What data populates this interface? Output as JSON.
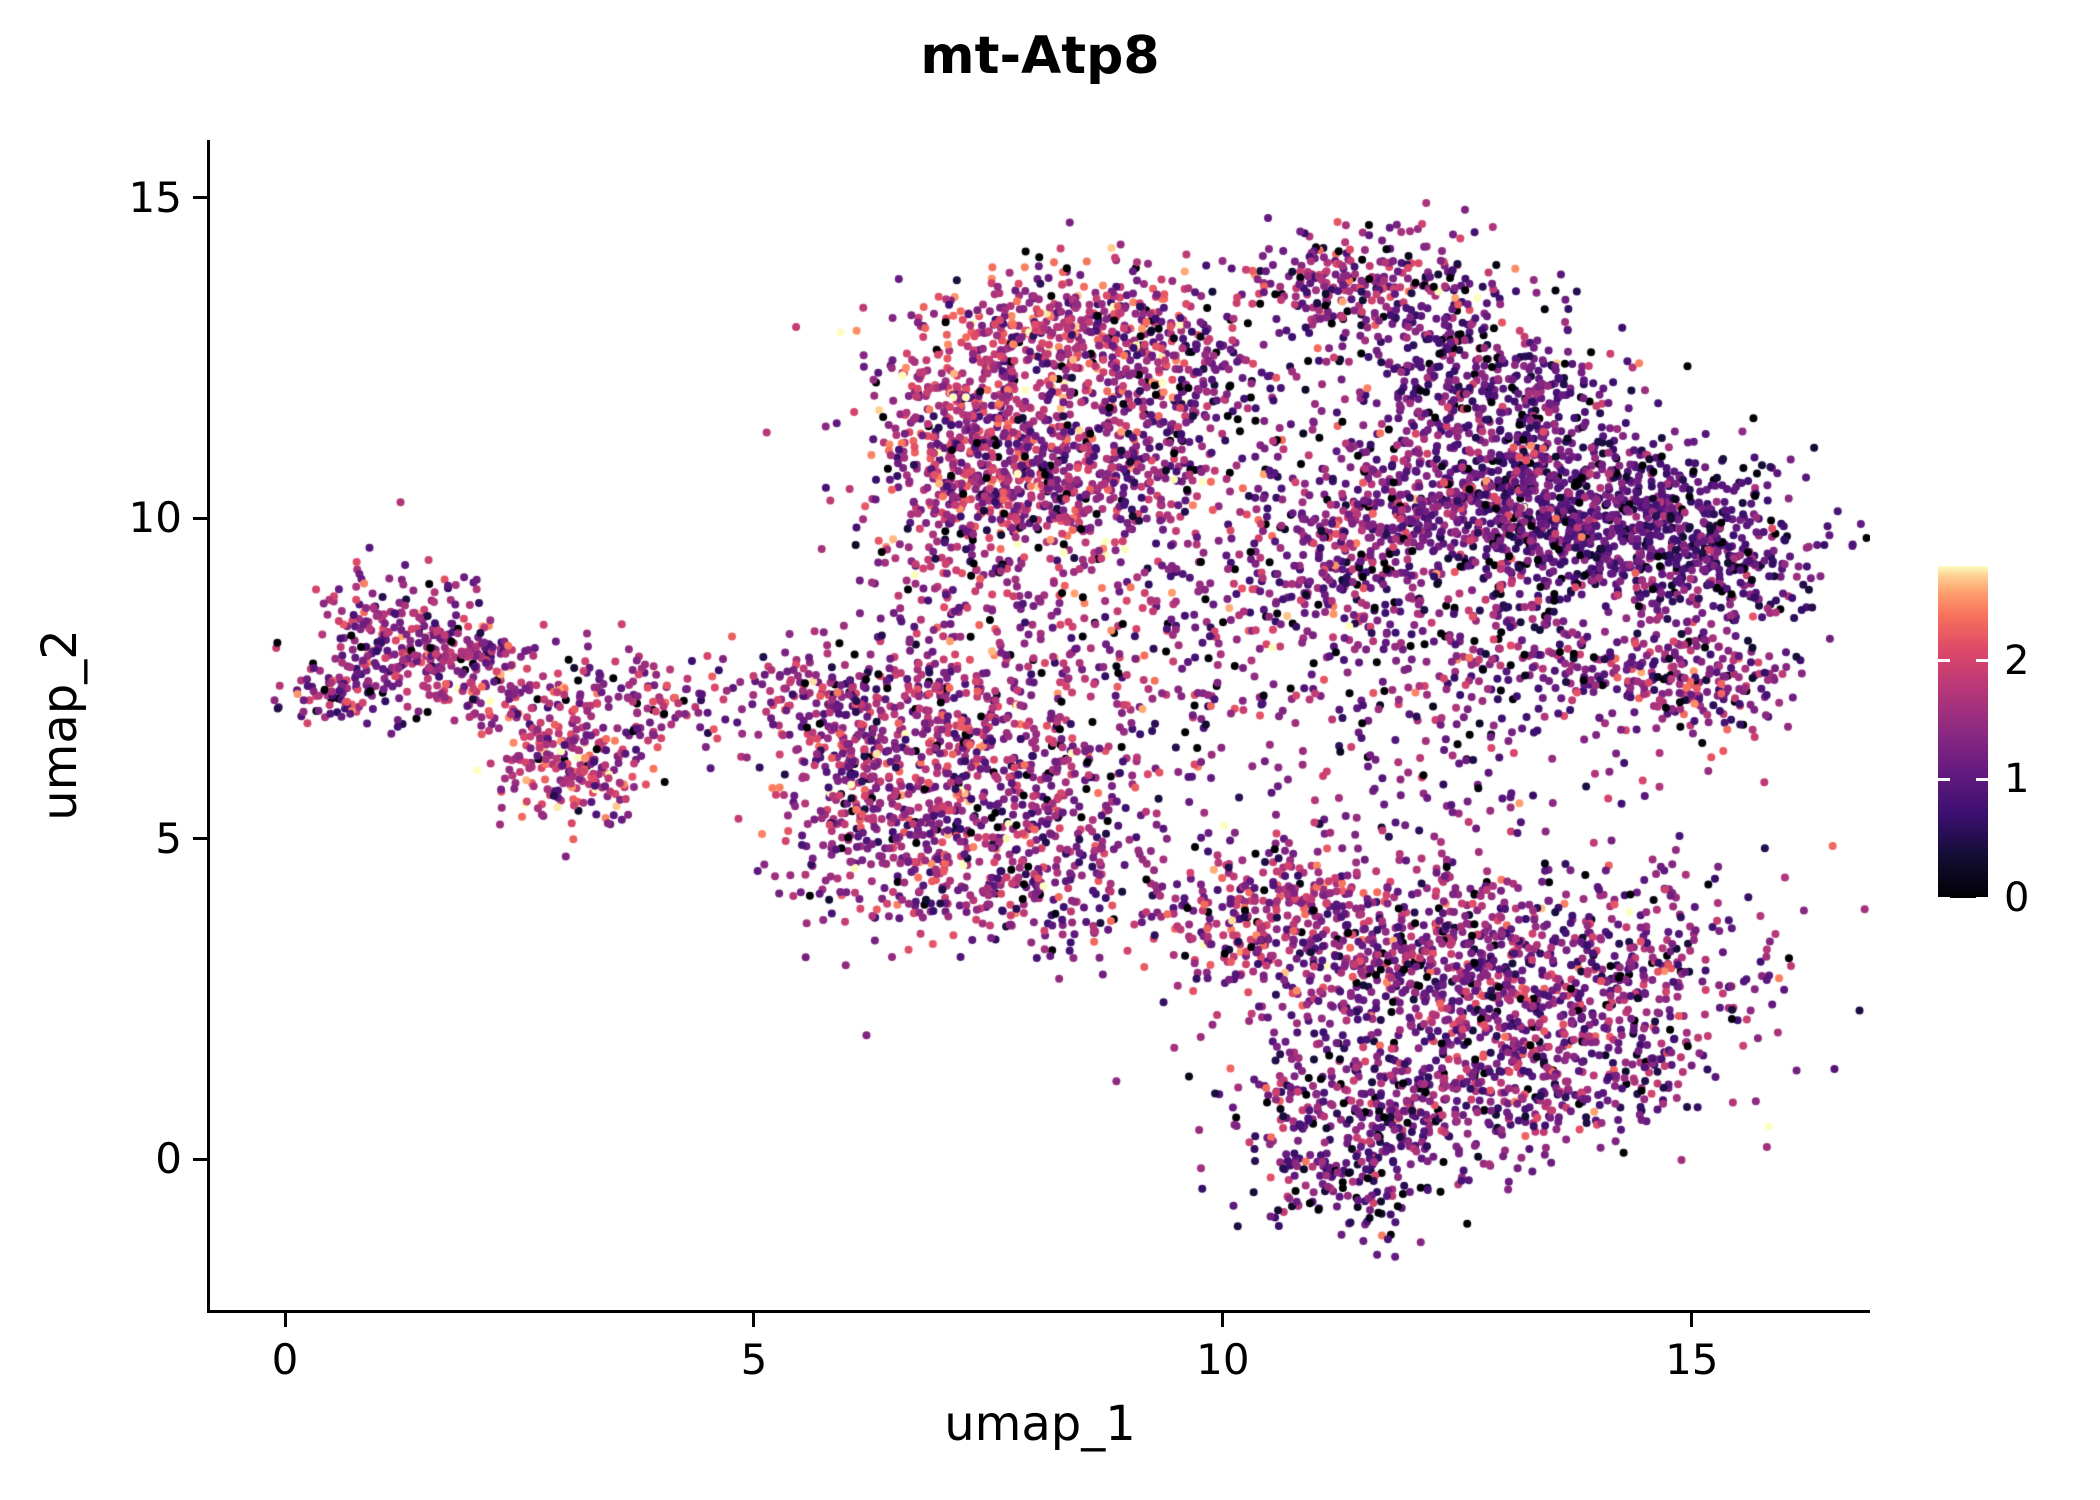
{
  "chart_data": {
    "type": "scatter",
    "title": "mt-Atp8",
    "xlabel": "umap_1",
    "ylabel": "umap_2",
    "xlim": [
      -0.8,
      16.9
    ],
    "ylim": [
      -2.35,
      15.9
    ],
    "xticks": [
      0,
      5,
      10,
      15
    ],
    "yticks": [
      0,
      5,
      10,
      15
    ],
    "grid": false,
    "legend_position": "right",
    "point_radius_px": 4,
    "seed": 42,
    "colorbar": {
      "vmin": 0,
      "vmax": 2.8,
      "ticks": [
        0,
        1,
        2
      ]
    },
    "colormap": {
      "name": "magma",
      "stops": [
        [
          0.0,
          "#000004"
        ],
        [
          0.13,
          "#140e36"
        ],
        [
          0.25,
          "#3b0f70"
        ],
        [
          0.38,
          "#641a80"
        ],
        [
          0.5,
          "#8c2981"
        ],
        [
          0.63,
          "#b73779"
        ],
        [
          0.75,
          "#de4968"
        ],
        [
          0.85,
          "#f7705c"
        ],
        [
          0.92,
          "#fe9f6d"
        ],
        [
          0.97,
          "#fecf92"
        ],
        [
          1.0,
          "#fcfdbf"
        ]
      ]
    },
    "clusters": [
      {
        "cx": 1.2,
        "cy": 8.1,
        "sx": 0.5,
        "sy": 0.55,
        "n": 220,
        "mean": 1.5,
        "sd": 0.5,
        "p0": 0.04
      },
      {
        "cx": 2.1,
        "cy": 7.6,
        "sx": 0.55,
        "sy": 0.45,
        "n": 180,
        "mean": 1.5,
        "sd": 0.5,
        "p0": 0.05
      },
      {
        "cx": 0.6,
        "cy": 7.3,
        "sx": 0.35,
        "sy": 0.3,
        "n": 80,
        "mean": 1.4,
        "sd": 0.5,
        "p0": 0.05
      },
      {
        "cx": 3.0,
        "cy": 6.3,
        "sx": 0.45,
        "sy": 0.45,
        "n": 170,
        "mean": 1.8,
        "sd": 0.5,
        "p0": 0.04
      },
      {
        "cx": 3.2,
        "cy": 5.8,
        "sx": 0.35,
        "sy": 0.35,
        "n": 60,
        "mean": 1.6,
        "sd": 0.5,
        "p0": 0.05
      },
      {
        "cx": 3.6,
        "cy": 7.3,
        "sx": 0.45,
        "sy": 0.4,
        "n": 90,
        "mean": 1.5,
        "sd": 0.5,
        "p0": 0.06
      },
      {
        "cx": 4.3,
        "cy": 6.8,
        "sx": 0.35,
        "sy": 0.3,
        "n": 25,
        "mean": 1.3,
        "sd": 0.5,
        "p0": 0.05
      },
      {
        "cx": 8.4,
        "cy": 13.0,
        "sx": 0.75,
        "sy": 0.5,
        "n": 420,
        "mean": 1.7,
        "sd": 0.55,
        "p0": 0.05
      },
      {
        "cx": 7.4,
        "cy": 11.8,
        "sx": 0.6,
        "sy": 0.6,
        "n": 300,
        "mean": 1.7,
        "sd": 0.5,
        "p0": 0.04
      },
      {
        "cx": 7.5,
        "cy": 10.4,
        "sx": 0.7,
        "sy": 0.6,
        "n": 420,
        "mean": 1.6,
        "sd": 0.55,
        "p0": 0.05
      },
      {
        "cx": 8.8,
        "cy": 10.9,
        "sx": 0.7,
        "sy": 0.7,
        "n": 350,
        "mean": 1.4,
        "sd": 0.5,
        "p0": 0.07
      },
      {
        "cx": 9.6,
        "cy": 12.2,
        "sx": 0.5,
        "sy": 0.6,
        "n": 180,
        "mean": 1.2,
        "sd": 0.5,
        "p0": 0.08
      },
      {
        "cx": 11.5,
        "cy": 13.6,
        "sx": 0.65,
        "sy": 0.45,
        "n": 260,
        "mean": 1.4,
        "sd": 0.6,
        "p0": 0.07
      },
      {
        "cx": 12.4,
        "cy": 12.5,
        "sx": 0.7,
        "sy": 0.7,
        "n": 280,
        "mean": 1.1,
        "sd": 0.5,
        "p0": 0.08
      },
      {
        "cx": 13.3,
        "cy": 11.6,
        "sx": 0.6,
        "sy": 0.6,
        "n": 200,
        "mean": 1.1,
        "sd": 0.45,
        "p0": 0.07
      },
      {
        "cx": 14.0,
        "cy": 9.9,
        "sx": 1.0,
        "sy": 0.65,
        "n": 850,
        "mean": 0.95,
        "sd": 0.35,
        "p0": 0.07
      },
      {
        "cx": 12.4,
        "cy": 10.4,
        "sx": 0.9,
        "sy": 0.7,
        "n": 450,
        "mean": 1.3,
        "sd": 0.5,
        "p0": 0.06
      },
      {
        "cx": 11.2,
        "cy": 9.3,
        "sx": 0.7,
        "sy": 0.8,
        "n": 300,
        "mean": 1.3,
        "sd": 0.5,
        "p0": 0.06
      },
      {
        "cx": 15.0,
        "cy": 7.5,
        "sx": 0.6,
        "sy": 0.45,
        "n": 220,
        "mean": 1.4,
        "sd": 0.5,
        "p0": 0.05
      },
      {
        "cx": 13.3,
        "cy": 7.8,
        "sx": 0.9,
        "sy": 0.6,
        "n": 220,
        "mean": 1.2,
        "sd": 0.5,
        "p0": 0.07
      },
      {
        "cx": 15.3,
        "cy": 9.2,
        "sx": 0.5,
        "sy": 0.6,
        "n": 200,
        "mean": 1.1,
        "sd": 0.45,
        "p0": 0.07
      },
      {
        "cx": 6.5,
        "cy": 6.8,
        "sx": 0.6,
        "sy": 0.7,
        "n": 280,
        "mean": 1.5,
        "sd": 0.55,
        "p0": 0.05
      },
      {
        "cx": 7.7,
        "cy": 6.1,
        "sx": 0.8,
        "sy": 0.7,
        "n": 330,
        "mean": 1.5,
        "sd": 0.55,
        "p0": 0.06
      },
      {
        "cx": 6.7,
        "cy": 4.6,
        "sx": 0.7,
        "sy": 0.7,
        "n": 280,
        "mean": 1.5,
        "sd": 0.5,
        "p0": 0.06
      },
      {
        "cx": 8.2,
        "cy": 4.3,
        "sx": 0.6,
        "sy": 0.6,
        "n": 180,
        "mean": 1.4,
        "sd": 0.5,
        "p0": 0.06
      },
      {
        "cx": 5.8,
        "cy": 7.1,
        "sx": 0.25,
        "sy": 0.5,
        "n": 70,
        "mean": 1.4,
        "sd": 0.5,
        "p0": 0.05
      },
      {
        "cx": 6.1,
        "cy": 5.7,
        "sx": 0.3,
        "sy": 0.5,
        "n": 80,
        "mean": 1.5,
        "sd": 0.5,
        "p0": 0.05
      },
      {
        "cx": 7.1,
        "cy": 8.4,
        "sx": 0.5,
        "sy": 0.7,
        "n": 110,
        "mean": 1.5,
        "sd": 0.5,
        "p0": 0.05
      },
      {
        "cx": 10.4,
        "cy": 3.9,
        "sx": 0.6,
        "sy": 0.6,
        "n": 260,
        "mean": 1.6,
        "sd": 0.5,
        "p0": 0.05
      },
      {
        "cx": 12.0,
        "cy": 3.2,
        "sx": 1.0,
        "sy": 0.8,
        "n": 600,
        "mean": 1.4,
        "sd": 0.5,
        "p0": 0.06
      },
      {
        "cx": 13.9,
        "cy": 2.8,
        "sx": 1.0,
        "sy": 0.9,
        "n": 520,
        "mean": 1.3,
        "sd": 0.5,
        "p0": 0.07
      },
      {
        "cx": 11.7,
        "cy": 0.9,
        "sx": 0.8,
        "sy": 0.7,
        "n": 380,
        "mean": 1.2,
        "sd": 0.5,
        "p0": 0.08
      },
      {
        "cx": 13.4,
        "cy": 1.2,
        "sx": 0.8,
        "sy": 0.6,
        "n": 280,
        "mean": 1.3,
        "sd": 0.5,
        "p0": 0.07
      },
      {
        "cx": 11.3,
        "cy": -0.4,
        "sx": 0.5,
        "sy": 0.4,
        "n": 120,
        "mean": 1.1,
        "sd": 0.5,
        "p0": 0.08
      },
      {
        "cx": 10.2,
        "cy": 7.6,
        "sx": 1.6,
        "sy": 1.3,
        "n": 160,
        "mean": 1.3,
        "sd": 0.6,
        "p0": 0.08
      },
      {
        "cx": 9.3,
        "cy": 9.0,
        "sx": 1.2,
        "sy": 0.9,
        "n": 120,
        "mean": 1.4,
        "sd": 0.6,
        "p0": 0.07
      },
      {
        "cx": 12.3,
        "cy": 5.9,
        "sx": 1.3,
        "sy": 0.8,
        "n": 120,
        "mean": 1.3,
        "sd": 0.5,
        "p0": 0.08
      },
      {
        "cx": 8.9,
        "cy": 7.8,
        "sx": 0.6,
        "sy": 0.8,
        "n": 90,
        "mean": 1.5,
        "sd": 0.5,
        "p0": 0.05
      },
      {
        "cx": 5.3,
        "cy": 7.2,
        "sx": 0.25,
        "sy": 0.35,
        "n": 40,
        "mean": 1.5,
        "sd": 0.5,
        "p0": 0.05
      }
    ]
  }
}
